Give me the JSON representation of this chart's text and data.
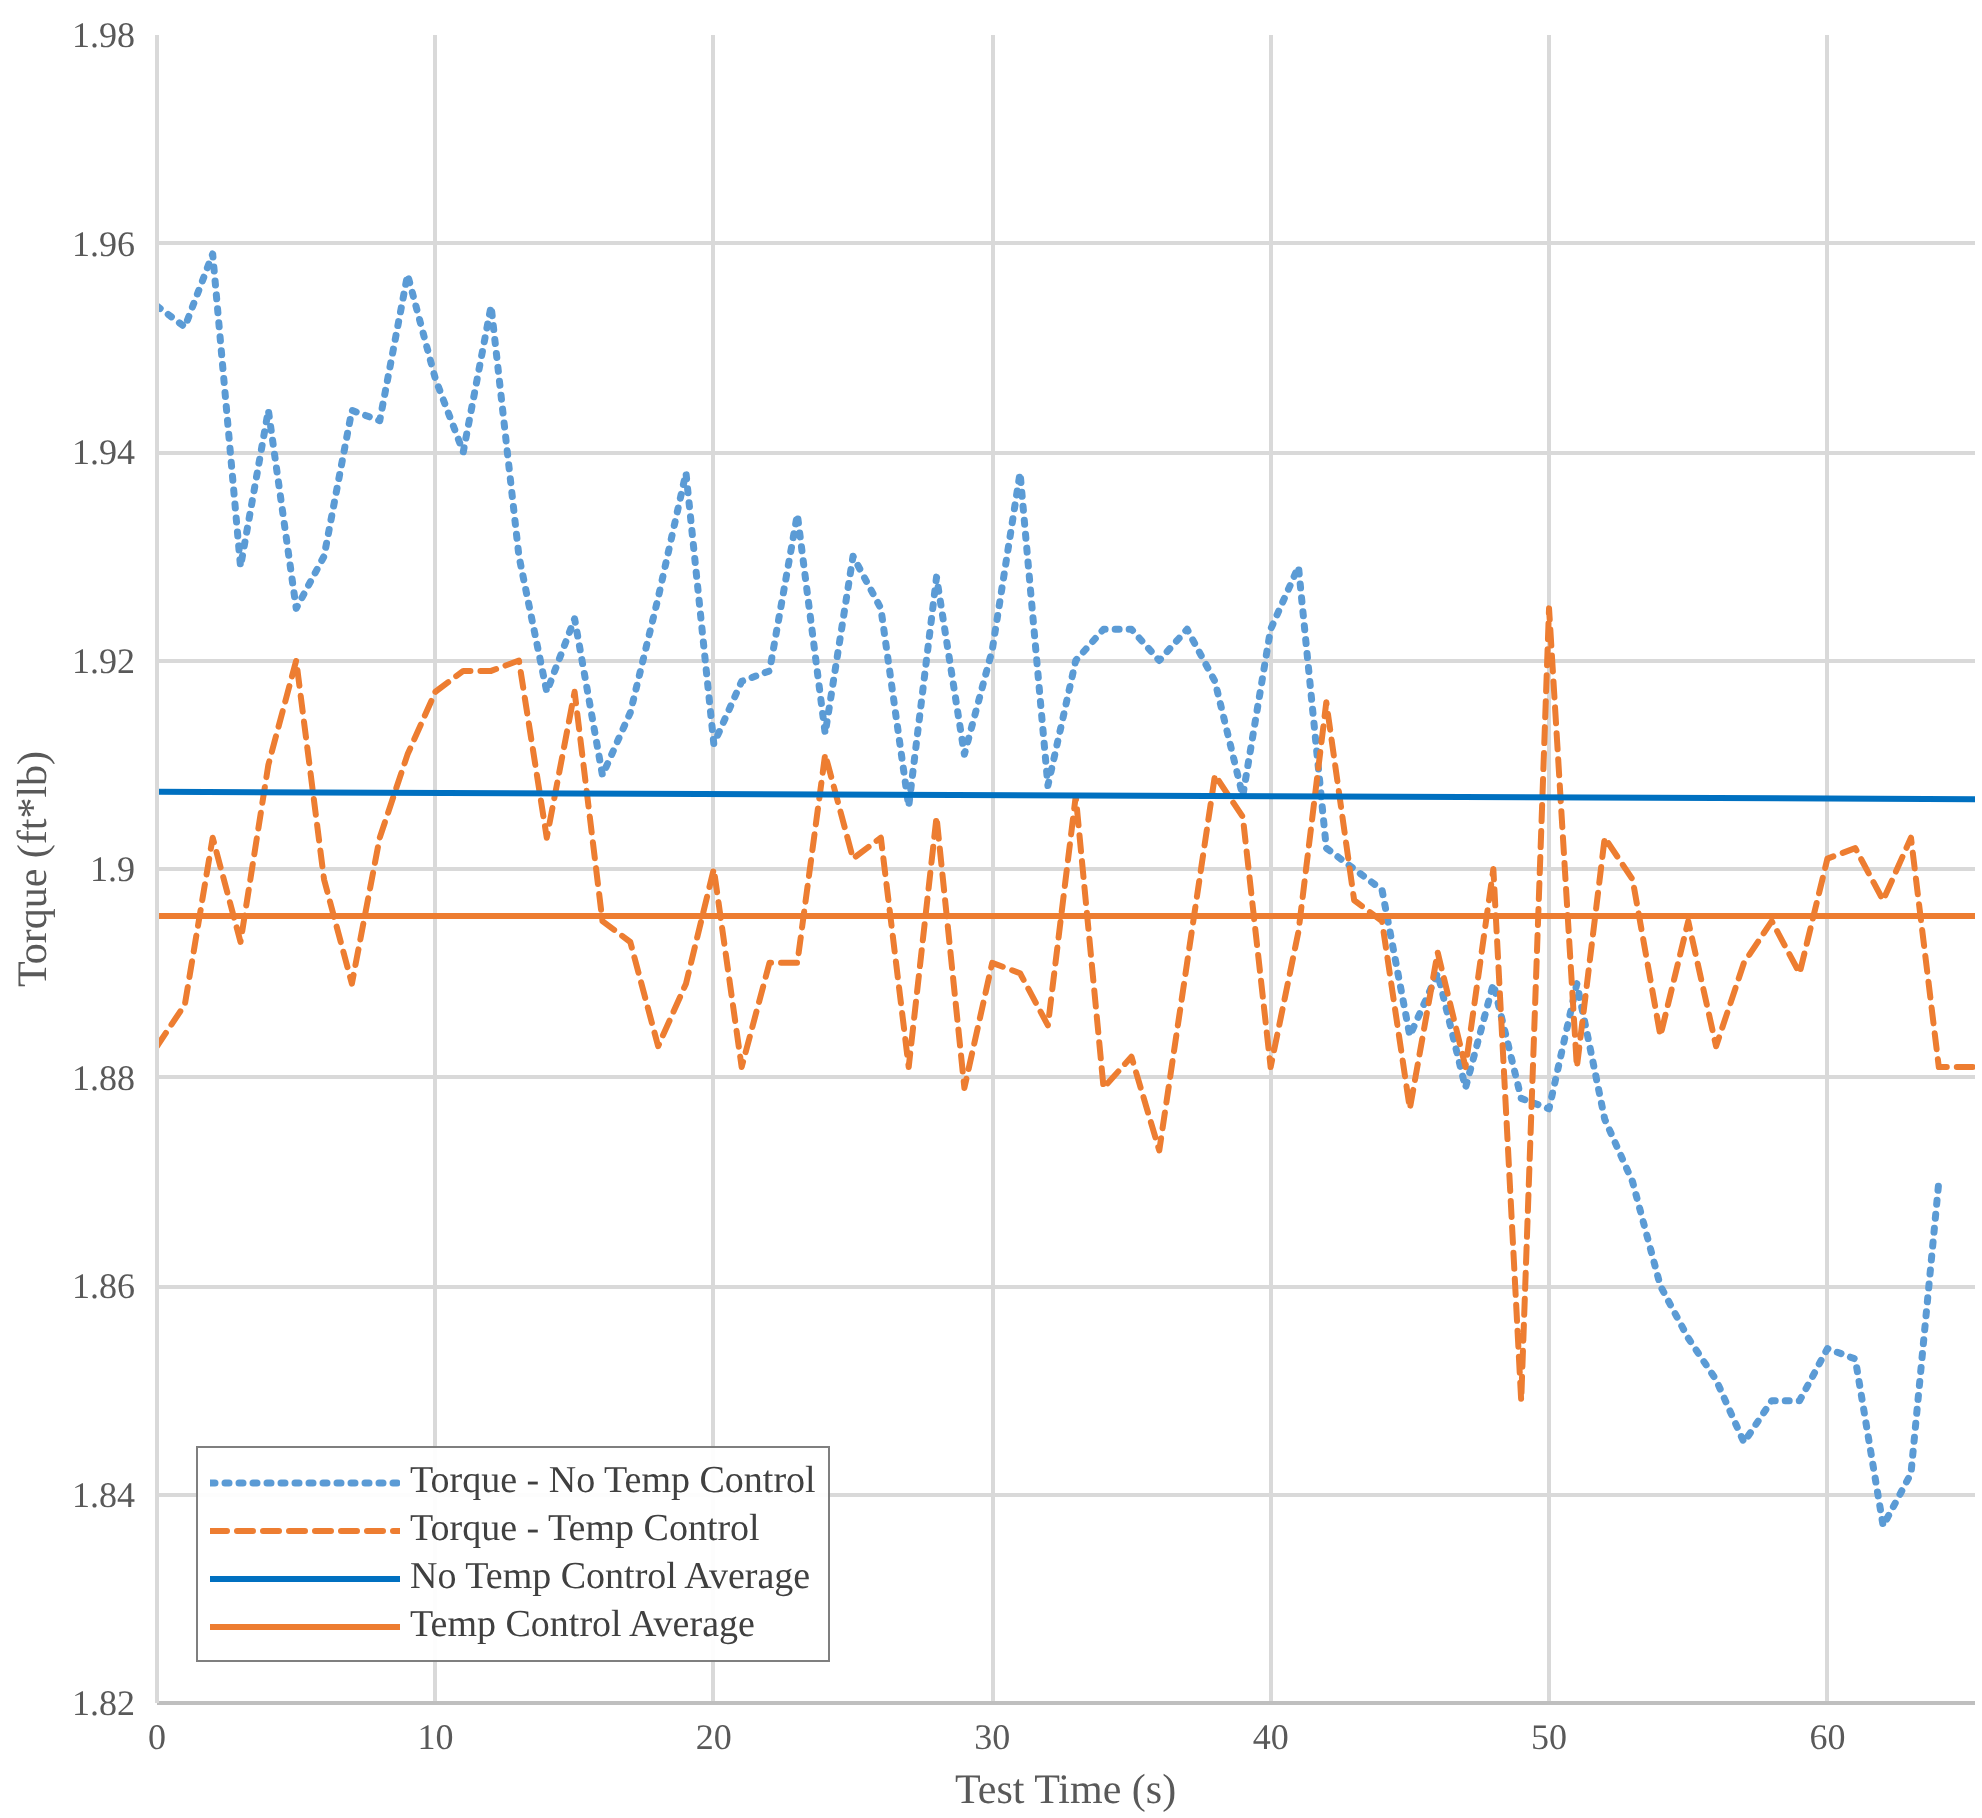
{
  "chart_data": {
    "type": "line",
    "xlabel": "Test Time (s)",
    "ylabel": "Torque (ft*lb)",
    "xlim": [
      0,
      65.3
    ],
    "ylim": [
      1.82,
      1.98
    ],
    "xticks": [
      0,
      10,
      20,
      30,
      40,
      50,
      60
    ],
    "yticks": [
      1.82,
      1.84,
      1.86,
      1.88,
      1.9,
      1.92,
      1.94,
      1.96,
      1.98
    ],
    "grid": true,
    "legend": "bottom left",
    "series": [
      {
        "name": "Torque - No Temp Control",
        "color": "#5b9bd5",
        "line_style": "dotted",
        "x": [
          0,
          1,
          2,
          3,
          4,
          5,
          6,
          7,
          8,
          9,
          10,
          11,
          12,
          13,
          14,
          15,
          16,
          17,
          18,
          19,
          20,
          21,
          22,
          23,
          24,
          25,
          26,
          27,
          28,
          29,
          30,
          31,
          32,
          33,
          34,
          35,
          36,
          37,
          38,
          39,
          40,
          41,
          42,
          43,
          44,
          45,
          46,
          47,
          48,
          49,
          50,
          51,
          52,
          53,
          54,
          55,
          56,
          57,
          58,
          59,
          60,
          61,
          62,
          63,
          64
        ],
        "values": [
          1.954,
          1.952,
          1.959,
          1.929,
          1.944,
          1.925,
          1.93,
          1.944,
          1.943,
          1.957,
          1.947,
          1.94,
          1.954,
          1.93,
          1.917,
          1.924,
          1.909,
          1.915,
          1.926,
          1.938,
          1.912,
          1.918,
          1.919,
          1.934,
          1.913,
          1.93,
          1.925,
          1.906,
          1.928,
          1.911,
          1.921,
          1.938,
          1.908,
          1.92,
          1.923,
          1.923,
          1.92,
          1.923,
          1.918,
          1.907,
          1.923,
          1.929,
          1.902,
          1.9,
          1.898,
          1.884,
          1.89,
          1.879,
          1.889,
          1.878,
          1.877,
          1.889,
          1.876,
          1.87,
          1.86,
          1.855,
          1.851,
          1.845,
          1.849,
          1.849,
          1.854,
          1.853,
          1.837,
          1.842,
          1.87
        ]
      },
      {
        "name": "Torque - Temp Control",
        "color": "#ed7d31",
        "line_style": "dashed",
        "x": [
          0,
          1,
          2,
          3,
          4,
          5,
          6,
          7,
          8,
          9,
          10,
          11,
          12,
          13,
          14,
          15,
          16,
          17,
          18,
          19,
          20,
          21,
          22,
          23,
          24,
          25,
          26,
          27,
          28,
          29,
          30,
          31,
          32,
          33,
          34,
          35,
          36,
          37,
          38,
          39,
          40,
          41,
          42,
          43,
          44,
          45,
          46,
          47,
          48,
          49,
          50,
          51,
          52,
          53,
          54,
          55,
          56,
          57,
          58,
          59,
          60,
          61,
          62,
          63,
          64,
          65.3
        ],
        "values": [
          1.883,
          1.887,
          1.903,
          1.893,
          1.91,
          1.92,
          1.899,
          1.889,
          1.903,
          1.911,
          1.917,
          1.919,
          1.919,
          1.92,
          1.903,
          1.917,
          1.895,
          1.893,
          1.883,
          1.889,
          1.9,
          1.881,
          1.891,
          1.891,
          1.911,
          1.901,
          1.903,
          1.881,
          1.905,
          1.879,
          1.891,
          1.89,
          1.885,
          1.907,
          1.879,
          1.882,
          1.873,
          1.891,
          1.909,
          1.905,
          1.881,
          1.894,
          1.916,
          1.897,
          1.895,
          1.877,
          1.892,
          1.881,
          1.9,
          1.849,
          1.925,
          1.881,
          1.903,
          1.899,
          1.884,
          1.895,
          1.883,
          1.891,
          1.895,
          1.89,
          1.901,
          1.902,
          1.897,
          1.903,
          1.881,
          1.881
        ]
      },
      {
        "name": "No Temp Control Average",
        "color": "#0070c0",
        "line_style": "solid",
        "x": [
          0,
          65.3
        ],
        "values": [
          1.9074,
          1.9067
        ]
      },
      {
        "name": "Temp Control Average",
        "color": "#ed7d31",
        "line_style": "solid",
        "x": [
          0,
          65.3
        ],
        "values": [
          1.8955,
          1.8955
        ]
      }
    ]
  }
}
